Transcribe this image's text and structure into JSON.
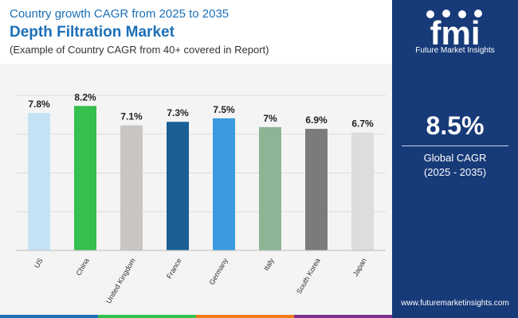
{
  "header": {
    "subtitle": "Country growth CAGR from 2025 to 2035",
    "title": "Depth Filtration Market",
    "note": "(Example of Country CAGR from 40+ covered in Report)"
  },
  "chart_data": {
    "type": "bar",
    "categories": [
      "US",
      "China",
      "United Kingdom",
      "France",
      "Germany",
      "Italy",
      "South Korea",
      "Japan"
    ],
    "values": [
      7.8,
      8.2,
      7.1,
      7.3,
      7.5,
      7.0,
      6.9,
      6.7
    ],
    "labels": [
      "7.8%",
      "8.2%",
      "7.1%",
      "7.3%",
      "7.5%",
      "7%",
      "6.9%",
      "6.7%"
    ],
    "colors": [
      "#c3e3f5",
      "#34bf4e",
      "#c8c5c3",
      "#1a5f95",
      "#3a9ae0",
      "#8db595",
      "#7b7b7b",
      "#dddddd"
    ],
    "ylim": [
      0,
      8.8
    ],
    "grid": true,
    "title": "",
    "xlabel": "",
    "ylabel": ""
  },
  "panel": {
    "logo_text": "fmi",
    "logo_caption": "Future Market Insights",
    "value": "8.5%",
    "label_line1": "Global CAGR",
    "label_line2": "(2025 - 2035)",
    "url": "www.futuremarketinsights.com",
    "bg_color": "#173a78"
  },
  "stripe_colors": [
    "#1b6fb8",
    "#34bf4e",
    "#f07d1a",
    "#7b2f8f"
  ]
}
